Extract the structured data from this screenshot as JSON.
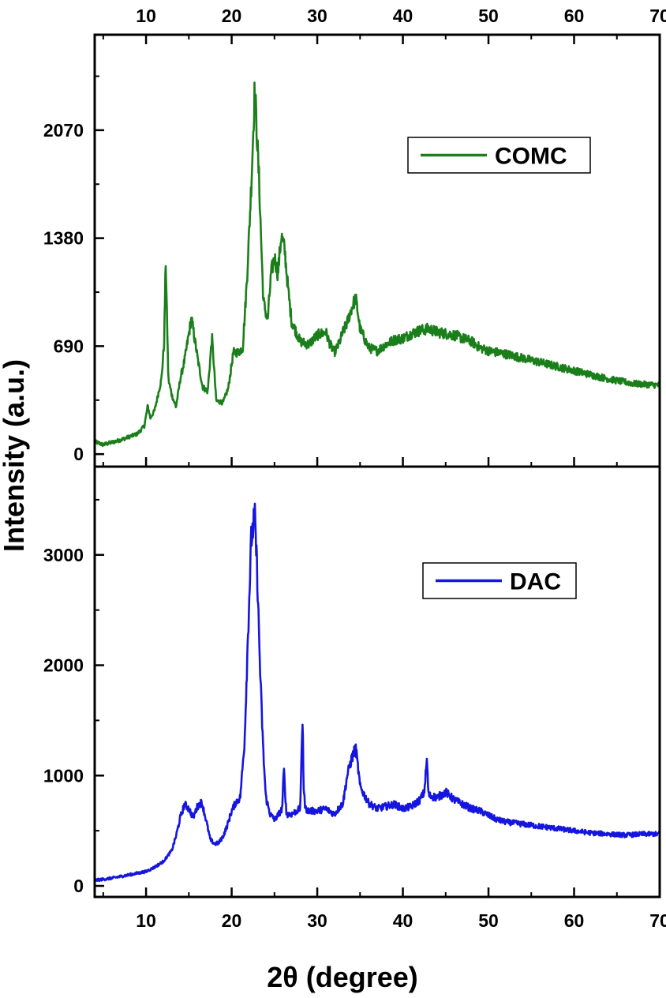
{
  "chart_data": [
    {
      "type": "line",
      "panel": "top",
      "xlim": [
        4,
        70
      ],
      "ylim": [
        -80,
        2680
      ],
      "xticks": [
        10,
        20,
        30,
        40,
        50,
        60,
        70
      ],
      "yticks": [
        0,
        690,
        1380,
        2070
      ],
      "ytick_labels": [
        "0",
        "690",
        "1380",
        "2070"
      ],
      "xtick_labels": [
        "10",
        "20",
        "30",
        "40",
        "50",
        "60",
        "70"
      ],
      "legend": {
        "label": "COMC",
        "position": "top-right"
      },
      "color": "#1a7f1a",
      "series": [
        {
          "name": "COMC",
          "x": [
            4,
            5,
            7,
            9,
            9.8,
            10.2,
            10.5,
            11,
            11.8,
            12.1,
            12.3,
            12.6,
            13,
            13.5,
            14,
            14.5,
            15.3,
            16,
            16.6,
            17.2,
            17.7,
            18.2,
            19,
            19.6,
            20.2,
            20.8,
            21.3,
            21.8,
            22.3,
            22.7,
            23.2,
            23.7,
            24.2,
            24.6,
            25,
            25.4,
            25.8,
            26.2,
            26.6,
            27,
            28,
            29,
            30,
            31,
            31.5,
            32,
            32.5,
            33,
            33.5,
            34,
            34.5,
            35,
            36,
            37,
            38,
            39,
            40,
            41,
            42,
            43,
            44,
            45,
            46,
            47,
            48,
            49,
            50,
            52,
            55,
            58,
            61,
            64,
            67,
            70
          ],
          "values": [
            80,
            60,
            90,
            130,
            180,
            310,
            230,
            280,
            480,
            700,
            1240,
            480,
            380,
            300,
            480,
            600,
            870,
            620,
            430,
            400,
            750,
            340,
            330,
            420,
            650,
            650,
            680,
            1130,
            1730,
            2340,
            1750,
            980,
            850,
            1150,
            1260,
            1150,
            1400,
            1300,
            1050,
            850,
            720,
            700,
            760,
            780,
            700,
            650,
            700,
            780,
            840,
            930,
            1000,
            800,
            680,
            660,
            700,
            730,
            740,
            770,
            790,
            800,
            780,
            770,
            760,
            740,
            720,
            680,
            660,
            640,
            600,
            560,
            520,
            480,
            450,
            440
          ]
        }
      ]
    },
    {
      "type": "line",
      "panel": "bottom",
      "xlim": [
        4,
        70
      ],
      "ylim": [
        -100,
        3800
      ],
      "xticks": [
        10,
        20,
        30,
        40,
        50,
        60,
        70
      ],
      "yticks": [
        0,
        1000,
        2000,
        3000
      ],
      "ytick_labels": [
        "0",
        "1000",
        "2000",
        "3000"
      ],
      "xtick_labels": [
        "10",
        "20",
        "30",
        "40",
        "50",
        "60",
        "70"
      ],
      "xlabel": "2θ (degree)",
      "legend": {
        "label": "DAC",
        "position": "top-right"
      },
      "color": "#1515e0",
      "series": [
        {
          "name": "DAC",
          "x": [
            4,
            6,
            8,
            10,
            11,
            12,
            13,
            13.5,
            14,
            14.5,
            15,
            15.5,
            16,
            16.5,
            17,
            17.5,
            18,
            18.5,
            19,
            19.5,
            20,
            20.5,
            21,
            21.5,
            22,
            22.3,
            22.7,
            23,
            23.3,
            23.7,
            24,
            24.5,
            25,
            25.5,
            25.9,
            26.1,
            26.4,
            27,
            28,
            28.3,
            28.4,
            28.6,
            29,
            30,
            31,
            32,
            33,
            33.5,
            34,
            34.5,
            35,
            36,
            37,
            38,
            39,
            40,
            41,
            42,
            42.5,
            42.8,
            43,
            44,
            45,
            46,
            47,
            48,
            49,
            50,
            51,
            52,
            54,
            56,
            58,
            60,
            62,
            64,
            66,
            68,
            70
          ],
          "values": [
            50,
            70,
            100,
            130,
            170,
            220,
            320,
            450,
            620,
            740,
            700,
            620,
            720,
            760,
            600,
            420,
            380,
            390,
            450,
            550,
            680,
            760,
            800,
            1300,
            2500,
            3150,
            3350,
            2800,
            2000,
            1200,
            800,
            650,
            600,
            650,
            700,
            1050,
            650,
            650,
            700,
            1550,
            900,
            700,
            680,
            680,
            700,
            650,
            750,
            1000,
            1150,
            1250,
            900,
            750,
            700,
            720,
            740,
            700,
            720,
            780,
            850,
            1150,
            820,
            800,
            850,
            780,
            740,
            700,
            680,
            640,
            600,
            580,
            560,
            540,
            520,
            500,
            480,
            470,
            460,
            470,
            470
          ]
        }
      ]
    }
  ],
  "shared": {
    "ylabel": "Intensity (a.u.)",
    "xlabel": "2θ (degree)"
  }
}
